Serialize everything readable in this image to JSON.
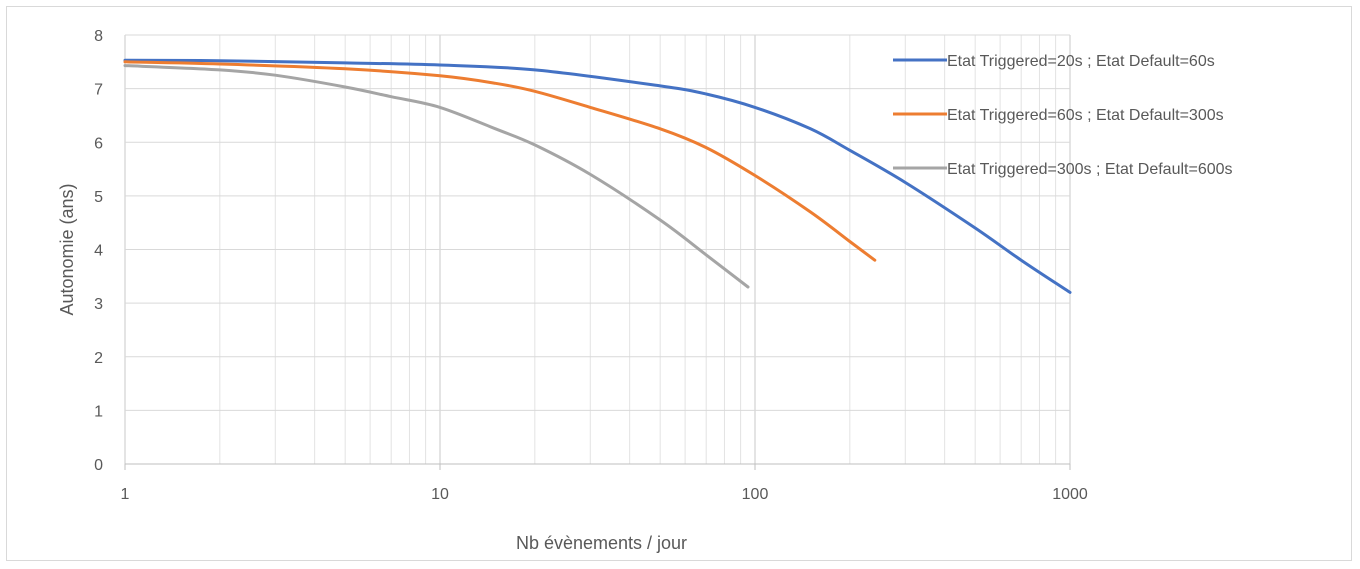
{
  "chart_data": {
    "type": "line",
    "title": "",
    "xlabel": "Nb évènements / jour",
    "ylabel": "Autonomie (ans)",
    "xscale": "log",
    "xlim": [
      1,
      1000
    ],
    "ylim": [
      0,
      8
    ],
    "xticks": [
      "1",
      "10",
      "100",
      "1000"
    ],
    "yticks": [
      "0",
      "1",
      "2",
      "3",
      "4",
      "5",
      "6",
      "7",
      "8"
    ],
    "grid": true,
    "legend_position": "right",
    "series": [
      {
        "name": "Etat Triggered=20s ; Etat Default=60s",
        "color": "#4472C4",
        "x": [
          1,
          2,
          5,
          10,
          20,
          50,
          70,
          100,
          150,
          200,
          300,
          500,
          700,
          1000
        ],
        "y": [
          7.53,
          7.52,
          7.48,
          7.44,
          7.35,
          7.05,
          6.9,
          6.65,
          6.25,
          5.85,
          5.25,
          4.4,
          3.8,
          3.2
        ]
      },
      {
        "name": "Etat Triggered=60s ; Etat Default=300s",
        "color": "#ED7D31",
        "x": [
          1,
          2,
          5,
          10,
          15,
          20,
          30,
          50,
          70,
          100,
          150,
          200,
          240
        ],
        "y": [
          7.5,
          7.46,
          7.37,
          7.24,
          7.1,
          6.95,
          6.65,
          6.25,
          5.9,
          5.38,
          4.7,
          4.15,
          3.8
        ]
      },
      {
        "name": "Etat Triggered=300s ; Etat Default=600s",
        "color": "#A5A5A5",
        "x": [
          1,
          2,
          3,
          5,
          7,
          10,
          15,
          20,
          30,
          50,
          70,
          95
        ],
        "y": [
          7.43,
          7.35,
          7.25,
          7.03,
          6.85,
          6.65,
          6.25,
          5.95,
          5.4,
          4.55,
          3.9,
          3.3
        ]
      }
    ]
  }
}
